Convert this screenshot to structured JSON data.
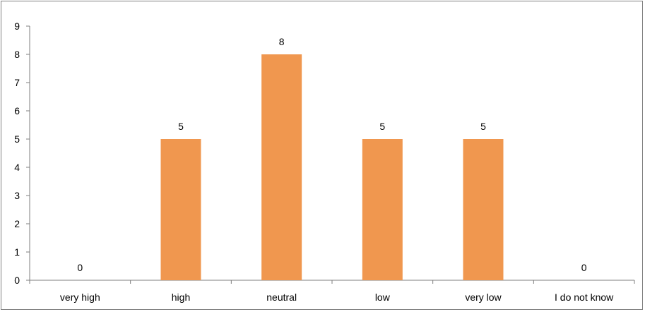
{
  "chart_data": {
    "type": "bar",
    "title": "",
    "xlabel": "",
    "ylabel": "",
    "categories": [
      "very high",
      "high",
      "neutral",
      "low",
      "very low",
      "I do not know"
    ],
    "values": [
      0,
      5,
      8,
      5,
      5,
      0
    ],
    "data_labels": [
      "0",
      "5",
      "8",
      "5",
      "5",
      "0"
    ],
    "ylim": [
      0,
      9
    ],
    "yticks": [
      "0",
      "1",
      "2",
      "3",
      "4",
      "5",
      "6",
      "7",
      "8",
      "9"
    ],
    "grid": false,
    "legend": "none",
    "bar_color": "#F0974F"
  }
}
